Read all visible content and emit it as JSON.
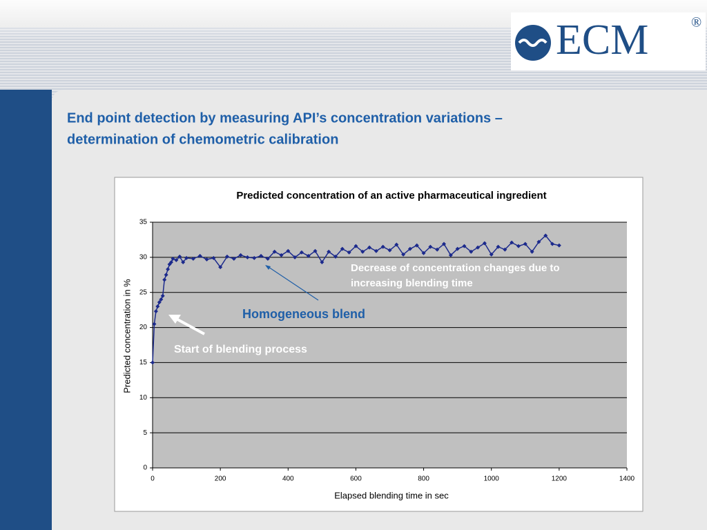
{
  "slide": {
    "title_lines": [
      "End point detection by measuring API’s concentration variations –",
      "determination of chemometric calibration"
    ],
    "logo": {
      "text": "ECM",
      "mark": "®"
    }
  },
  "chart_data": {
    "type": "line",
    "title": "Predicted concentration of an active pharmaceutical ingredient",
    "x_label": "Elapsed blending time in sec",
    "y_label": "Predicted concentration in %",
    "x": [
      0,
      5,
      10,
      15,
      20,
      25,
      30,
      35,
      40,
      45,
      50,
      55,
      60,
      70,
      80,
      90,
      100,
      120,
      140,
      160,
      180,
      200,
      220,
      240,
      260,
      280,
      300,
      320,
      340,
      360,
      380,
      400,
      420,
      440,
      460,
      480,
      500,
      520,
      540,
      560,
      580,
      600,
      620,
      640,
      660,
      680,
      700,
      720,
      740,
      760,
      780,
      800,
      820,
      840,
      860,
      880,
      900,
      920,
      940,
      960,
      980,
      1000,
      1020,
      1040,
      1060,
      1080,
      1100,
      1120,
      1140,
      1160,
      1180,
      1200
    ],
    "series": [
      {
        "color": "#1c2a8c",
        "values": [
          15,
          20.5,
          22.3,
          23,
          23.6,
          24,
          24.5,
          26.8,
          27.5,
          28.3,
          29,
          29.3,
          29.8,
          29.6,
          30.1,
          29.3,
          29.9,
          29.8,
          30.2,
          29.7,
          29.9,
          28.6,
          30.1,
          29.8,
          30.3,
          30,
          29.9,
          30.2,
          29.8,
          30.8,
          30.3,
          30.9,
          30,
          30.7,
          30.2,
          30.9,
          29.3,
          30.8,
          30.1,
          31.2,
          30.7,
          31.6,
          30.8,
          31.4,
          30.9,
          31.5,
          31,
          31.8,
          30.4,
          31.2,
          31.7,
          30.6,
          31.5,
          31.1,
          31.9,
          30.3,
          31.2,
          31.6,
          30.8,
          31.4,
          32,
          30.4,
          31.5,
          31.1,
          32.1,
          31.6,
          31.9,
          30.8,
          32.2,
          33.1,
          31.9,
          31.7
        ]
      }
    ],
    "xlim": [
      0,
      1400
    ],
    "xticks": [
      0,
      200,
      400,
      600,
      800,
      1000,
      1200,
      1400
    ],
    "ylim": [
      0,
      35
    ],
    "yticks": [
      0,
      5,
      10,
      15,
      20,
      25,
      30,
      35
    ],
    "grid": true,
    "annotations": [
      {
        "lines": [
          "Start of blending process"
        ]
      },
      {
        "lines": [
          "Decrease of concentration changes due to",
          "increasing blending time"
        ]
      },
      {
        "lines": [
          "Homogeneous blend"
        ]
      }
    ]
  }
}
